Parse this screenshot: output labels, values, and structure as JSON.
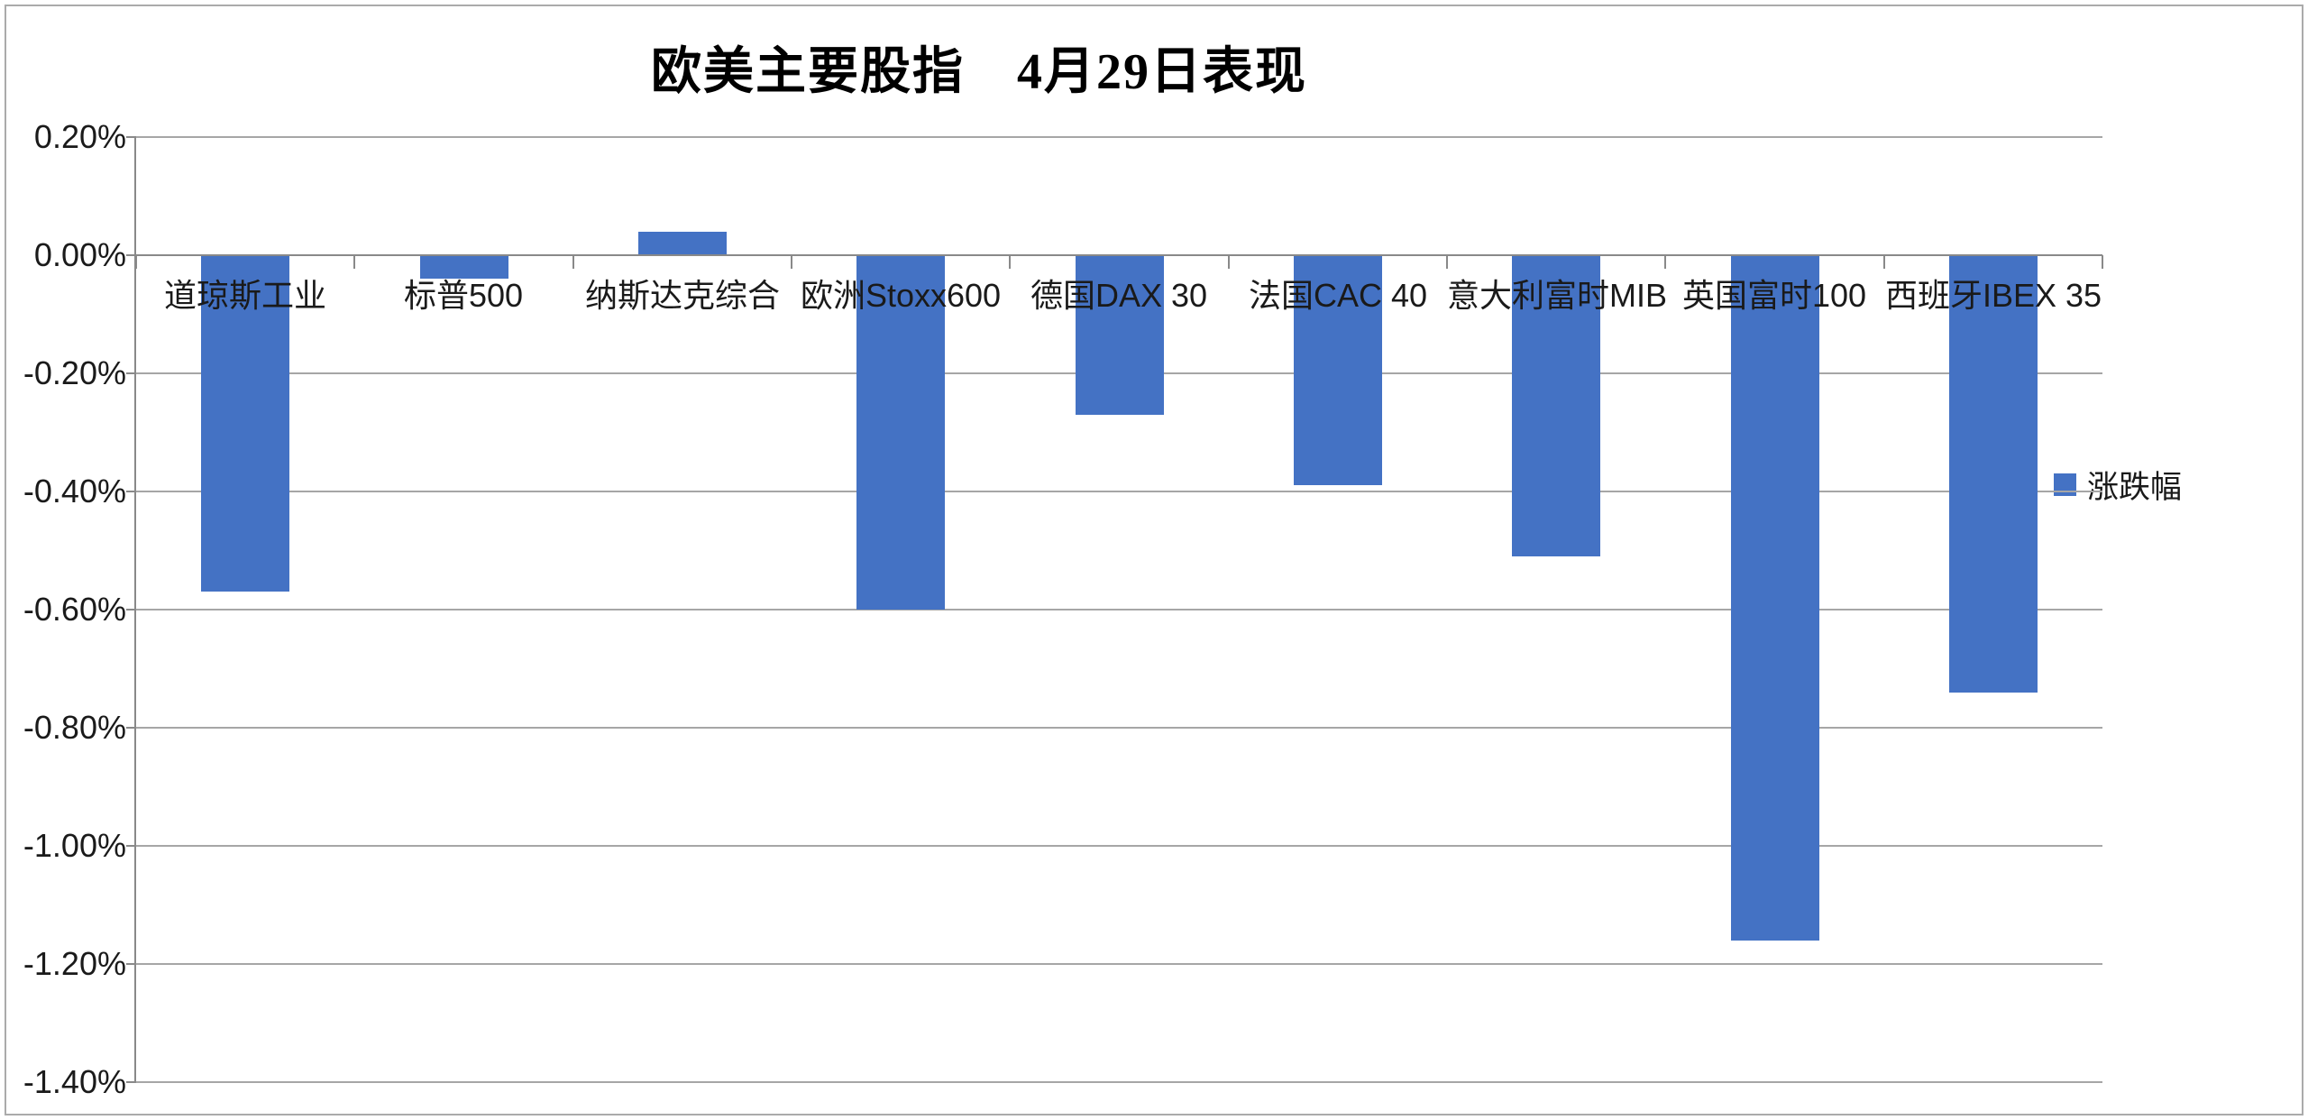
{
  "chart_data": {
    "type": "bar",
    "title": "欧美主要股指　4月29日表现",
    "categories": [
      "道琼斯工业",
      "标普500",
      "纳斯达克综合",
      "欧洲Stoxx600",
      "德国DAX 30",
      "法国CAC 40",
      "意大利富时MIB",
      "英国富时100",
      "西班牙IBEX 35"
    ],
    "series": [
      {
        "name": "涨跌幅",
        "values_pct": [
          -0.57,
          -0.04,
          0.04,
          -0.6,
          -0.27,
          -0.39,
          -0.51,
          -1.16,
          -0.74
        ]
      }
    ],
    "y_axis": {
      "max_pct": 0.2,
      "min_pct": -1.4,
      "tick_step_pct": 0.2,
      "ticks_pct": [
        0.2,
        0.0,
        -0.2,
        -0.4,
        -0.6,
        -0.8,
        -1.0,
        -1.2,
        -1.4
      ],
      "tick_labels": [
        "0.20%",
        "0.00%",
        "-0.20%",
        "-0.40%",
        "-0.60%",
        "-0.80%",
        "-1.00%",
        "-1.20%",
        "-1.40%"
      ]
    },
    "grid": true,
    "legend": {
      "position": "right",
      "label": "涨跌幅"
    },
    "colors": {
      "bar": "#4472C4",
      "gridline": "#A6A6A6",
      "axis": "#898989",
      "text": "#1A1A1A",
      "border": "#ABABAB"
    }
  }
}
